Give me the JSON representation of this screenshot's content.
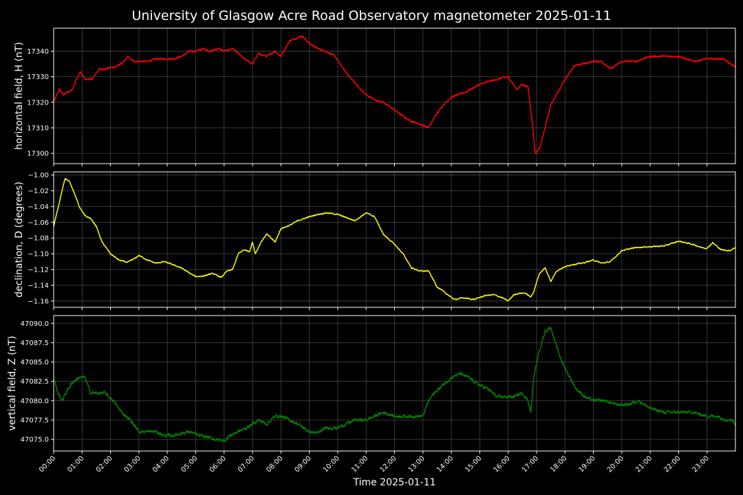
{
  "chart_data": {
    "type": "line",
    "title": "University of Glasgow Acre Road Observatory magnetometer 2025-01-11",
    "xlabel": "Time 2025-01-11",
    "x_ticks": [
      "00:00",
      "01:00",
      "02:00",
      "03:00",
      "04:00",
      "05:00",
      "06:00",
      "07:00",
      "08:00",
      "09:00",
      "10:00",
      "11:00",
      "12:00",
      "13:00",
      "14:00",
      "15:00",
      "16:00",
      "17:00",
      "18:00",
      "19:00",
      "20:00",
      "21:00",
      "22:00",
      "23:00"
    ],
    "xlim_hours": [
      0,
      24
    ],
    "grid": true,
    "background": "#000000",
    "panels": [
      {
        "ylabel": "horizontal field, H (nT)",
        "color": "#ff0000",
        "ylim": [
          17296,
          17349
        ],
        "y_ticks": [
          17300,
          17310,
          17320,
          17330,
          17340
        ],
        "y_tick_labels": [
          "17300",
          "17310",
          "17320",
          "17330",
          "17340"
        ],
        "noise": 0.6,
        "series": [
          {
            "x": [
              0.0,
              0.2,
              0.35,
              0.5,
              0.65,
              0.8,
              0.95,
              1.1,
              1.35,
              1.6,
              1.8,
              2.2,
              2.5,
              2.6,
              2.8,
              3.0,
              3.3,
              3.6,
              3.9,
              4.2,
              4.5,
              4.8,
              5.0,
              5.3,
              5.5,
              5.8,
              6.0,
              6.3,
              6.5,
              6.7,
              7.0,
              7.2,
              7.5,
              7.8,
              8.0,
              8.3,
              8.5,
              8.75,
              9.0,
              9.3,
              9.6,
              9.9,
              10.2,
              10.5,
              10.8,
              11.0,
              11.3,
              11.6,
              12.0,
              12.5,
              13.0,
              13.2,
              13.5,
              13.8,
              14.0,
              14.5,
              15.0,
              15.3,
              15.6,
              16.0,
              16.3,
              16.5,
              16.7,
              16.85,
              16.95,
              17.1,
              17.3,
              17.5,
              17.8,
              18.0,
              18.3,
              18.6,
              19.0,
              19.3,
              19.6,
              20.0,
              20.5,
              21.0,
              21.5,
              22.0,
              22.5,
              23.0,
              23.3,
              23.6,
              23.8,
              24.0
            ],
            "y": [
              17320,
              17325,
              17323,
              17324,
              17325,
              17329,
              17332,
              17329,
              17329,
              17333,
              17333,
              17334,
              17336,
              17338,
              17336,
              17336,
              17336,
              17337,
              17337,
              17337,
              17338,
              17340,
              17340,
              17341,
              17340,
              17341,
              17340,
              17341,
              17339,
              17337,
              17335,
              17339,
              17338,
              17340,
              17338,
              17344,
              17345,
              17346,
              17343,
              17341,
              17340,
              17338,
              17333,
              17329,
              17325,
              17323,
              17321,
              17320,
              17317,
              17313,
              17311,
              17310,
              17316,
              17320,
              17322,
              17324,
              17327,
              17328,
              17329,
              17330,
              17325,
              17327,
              17326,
              17312,
              17300,
              17302,
              17310,
              17319,
              17325,
              17329,
              17334,
              17335,
              17336,
              17336,
              17333,
              17336,
              17336,
              17338,
              17338,
              17338,
              17336,
              17337,
              17337,
              17337,
              17335,
              17334
            ]
          }
        ]
      },
      {
        "ylabel": "declination, D (degrees)",
        "color": "#ffff00",
        "ylim": [
          -1.168,
          -0.996
        ],
        "y_ticks": [
          -1.16,
          -1.14,
          -1.12,
          -1.1,
          -1.08,
          -1.06,
          -1.04,
          -1.02,
          -1.0
        ],
        "y_tick_labels": [
          "−1.16",
          "−1.14",
          "−1.12",
          "−1.10",
          "−1.08",
          "−1.06",
          "−1.04",
          "−1.02",
          "−1.00"
        ],
        "noise": 0.0012,
        "series": [
          {
            "x": [
              0.0,
              0.2,
              0.4,
              0.55,
              0.7,
              0.9,
              1.1,
              1.3,
              1.5,
              1.7,
              2.0,
              2.3,
              2.6,
              2.9,
              3.0,
              3.3,
              3.6,
              3.9,
              4.2,
              4.5,
              4.8,
              5.0,
              5.3,
              5.6,
              5.9,
              6.1,
              6.3,
              6.5,
              6.7,
              6.9,
              7.0,
              7.1,
              7.3,
              7.5,
              7.8,
              8.0,
              8.3,
              8.6,
              9.0,
              9.3,
              9.6,
              10.0,
              10.3,
              10.6,
              11.0,
              11.3,
              11.6,
              12.0,
              12.3,
              12.6,
              12.9,
              13.2,
              13.5,
              13.8,
              14.1,
              14.4,
              14.8,
              15.2,
              15.5,
              15.8,
              16.0,
              16.2,
              16.4,
              16.6,
              16.8,
              16.9,
              17.1,
              17.3,
              17.5,
              17.7,
              17.9,
              18.2,
              18.6,
              19.0,
              19.3,
              19.6,
              20.0,
              20.5,
              21.0,
              21.5,
              22.0,
              22.5,
              22.8,
              23.0,
              23.2,
              23.5,
              23.8,
              24.0
            ],
            "y": [
              -1.065,
              -1.035,
              -1.004,
              -1.008,
              -1.02,
              -1.04,
              -1.052,
              -1.055,
              -1.065,
              -1.085,
              -1.1,
              -1.108,
              -1.111,
              -1.105,
              -1.102,
              -1.108,
              -1.112,
              -1.11,
              -1.114,
              -1.118,
              -1.125,
              -1.129,
              -1.128,
              -1.125,
              -1.13,
              -1.122,
              -1.12,
              -1.1,
              -1.095,
              -1.097,
              -1.085,
              -1.1,
              -1.085,
              -1.075,
              -1.085,
              -1.068,
              -1.064,
              -1.058,
              -1.053,
              -1.05,
              -1.048,
              -1.05,
              -1.054,
              -1.058,
              -1.048,
              -1.053,
              -1.075,
              -1.088,
              -1.1,
              -1.118,
              -1.122,
              -1.122,
              -1.142,
              -1.15,
              -1.158,
              -1.156,
              -1.158,
              -1.153,
              -1.152,
              -1.156,
              -1.16,
              -1.152,
              -1.15,
              -1.15,
              -1.155,
              -1.148,
              -1.125,
              -1.118,
              -1.135,
              -1.122,
              -1.118,
              -1.114,
              -1.112,
              -1.108,
              -1.112,
              -1.11,
              -1.096,
              -1.092,
              -1.091,
              -1.09,
              -1.084,
              -1.088,
              -1.092,
              -1.093,
              -1.086,
              -1.095,
              -1.096,
              -1.092
            ]
          }
        ]
      },
      {
        "ylabel": "vertical field, Z (nT)",
        "color": "#008000",
        "ylim": [
          47073.5,
          47091.0
        ],
        "y_ticks": [
          47075.0,
          47077.5,
          47080.0,
          47082.5,
          47085.0,
          47087.5,
          47090.0
        ],
        "y_tick_labels": [
          "47075.0",
          "47077.5",
          "47080.0",
          "47082.5",
          "47085.0",
          "47087.5",
          "47090.0"
        ],
        "noise": 0.35,
        "series": [
          {
            "x": [
              0.0,
              0.15,
              0.3,
              0.5,
              0.7,
              0.9,
              1.1,
              1.3,
              1.6,
              1.8,
              2.1,
              2.4,
              2.7,
              3.0,
              3.3,
              3.6,
              3.9,
              4.2,
              4.5,
              4.8,
              5.1,
              5.4,
              5.7,
              6.0,
              6.2,
              6.5,
              6.8,
              7.0,
              7.2,
              7.5,
              7.8,
              8.0,
              8.3,
              8.6,
              9.0,
              9.3,
              9.6,
              10.0,
              10.3,
              10.6,
              11.0,
              11.3,
              11.6,
              12.0,
              12.3,
              12.6,
              13.0,
              13.2,
              13.4,
              13.7,
              14.0,
              14.3,
              14.6,
              15.0,
              15.3,
              15.6,
              15.9,
              16.2,
              16.5,
              16.7,
              16.8,
              16.9,
              17.1,
              17.3,
              17.5,
              17.7,
              17.9,
              18.1,
              18.4,
              18.7,
              19.0,
              19.4,
              19.8,
              20.2,
              20.6,
              21.0,
              21.5,
              22.0,
              22.5,
              23.0,
              23.4,
              23.7,
              23.9,
              24.0
            ],
            "y": [
              47083.0,
              47081.0,
              47080.0,
              47081.5,
              47082.5,
              47083.0,
              47083.0,
              47081.0,
              47081.0,
              47081.0,
              47080.0,
              47078.5,
              47077.5,
              47076.0,
              47076.0,
              47076.0,
              47075.5,
              47075.5,
              47075.8,
              47076.0,
              47075.5,
              47075.3,
              47075.0,
              47074.8,
              47075.5,
              47076.0,
              47076.5,
              47077.0,
              47077.5,
              47077.0,
              47078.0,
              47078.0,
              47077.5,
              47077.0,
              47076.0,
              47075.8,
              47076.5,
              47076.5,
              47077.0,
              47077.5,
              47077.5,
              47078.0,
              47078.5,
              47078.0,
              47078.0,
              47078.0,
              47078.0,
              47080.0,
              47081.0,
              47082.0,
              47083.0,
              47083.5,
              47083.0,
              47082.0,
              47081.5,
              47080.5,
              47080.5,
              47080.5,
              47081.0,
              47080.0,
              47078.5,
              47083.0,
              47086.5,
              47089.0,
              47089.5,
              47087.0,
              47085.0,
              47083.5,
              47081.5,
              47080.5,
              47080.0,
              47080.0,
              47079.5,
              47079.5,
              47080.0,
              47079.0,
              47078.5,
              47078.5,
              47078.5,
              47078.0,
              47078.0,
              47077.5,
              47077.5,
              47077.0
            ]
          }
        ]
      }
    ]
  }
}
